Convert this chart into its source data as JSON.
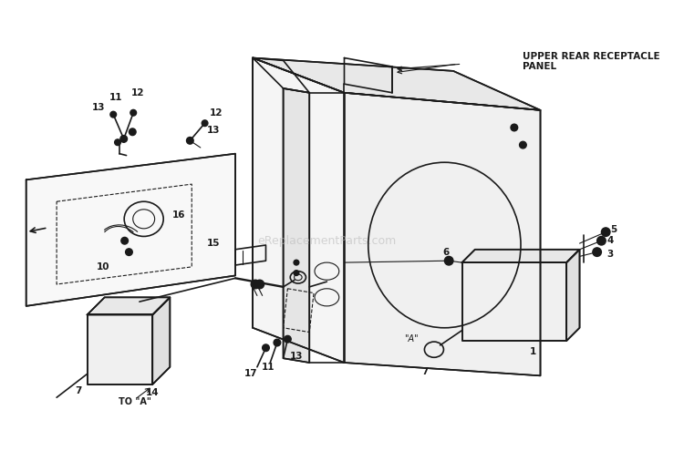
{
  "bg_color": "#ffffff",
  "line_color": "#1a1a1a",
  "watermark": "eReplacementParts.com",
  "watermark_color": "#bbbbbb",
  "label_upper_rear": "UPPER REAR RECEPTACLE\nPANEL",
  "label_to_a": "TO \"A\"",
  "label_a": "\"A\"",
  "figsize": [
    7.5,
    4.95
  ],
  "dpi": 100
}
